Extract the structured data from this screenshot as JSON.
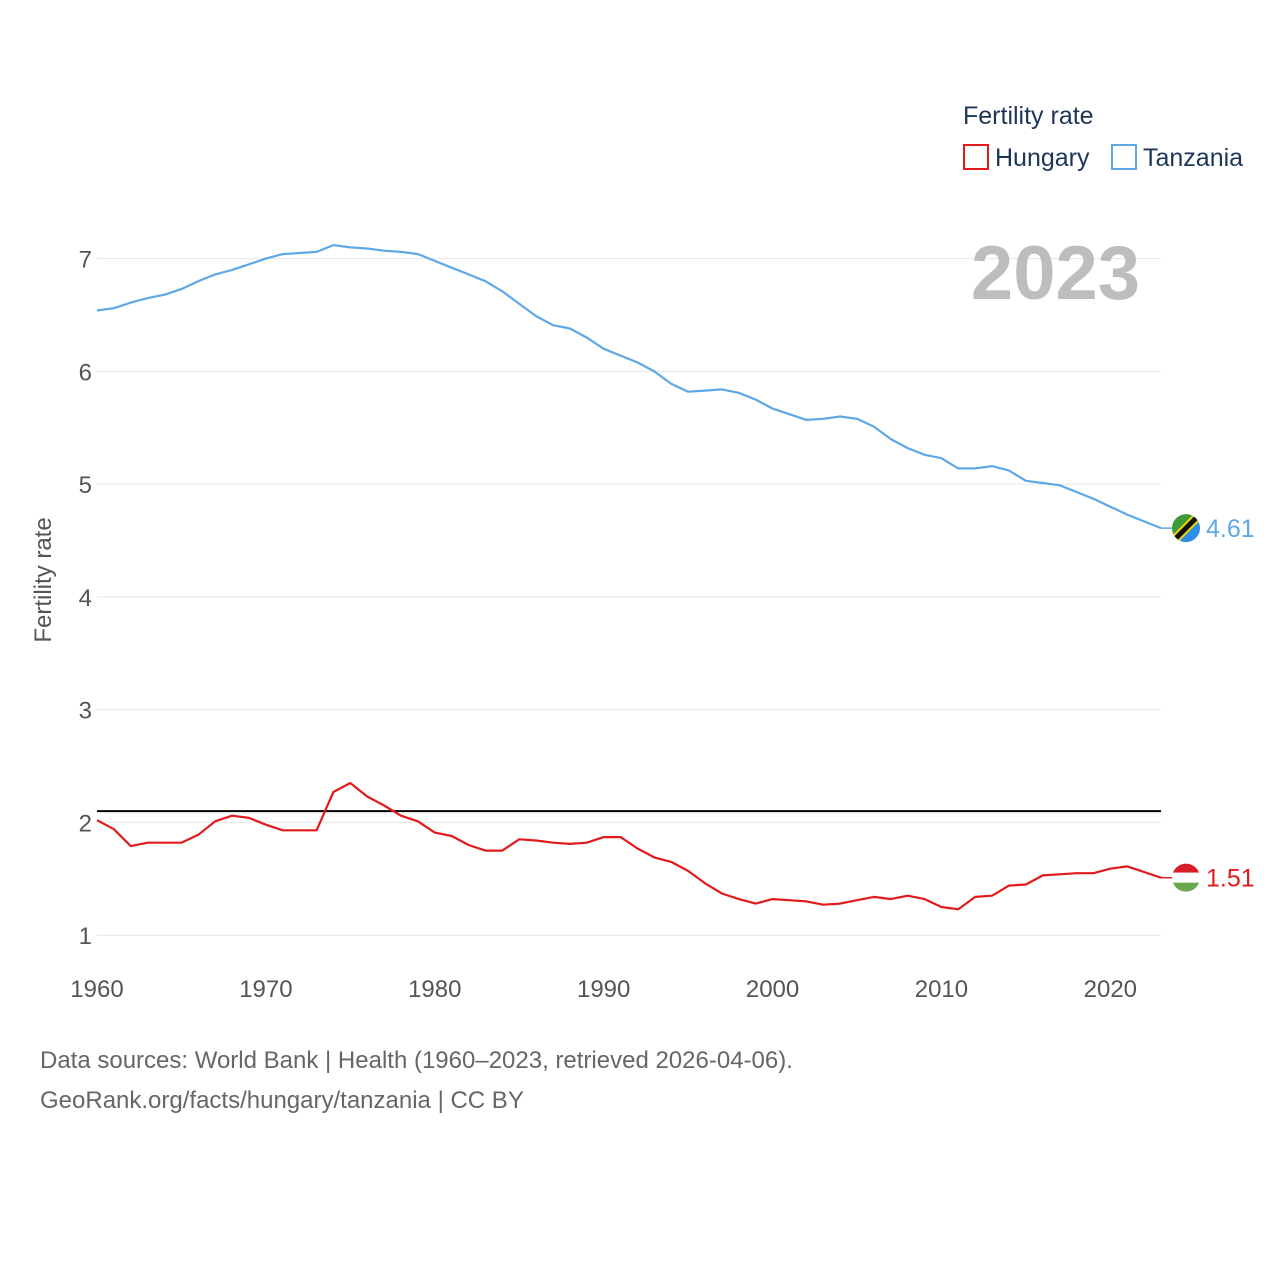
{
  "chart_data": {
    "type": "line",
    "legend_title": "Fertility rate",
    "ylabel": "Fertility rate",
    "xlabel": "",
    "year_label": "2023",
    "xlim": [
      1960,
      2023
    ],
    "ylim": [
      0.78,
      7.52
    ],
    "y_ticks": [
      1,
      2,
      3,
      4,
      5,
      6,
      7
    ],
    "x_ticks": [
      1960,
      1970,
      1980,
      1990,
      2000,
      2010,
      2020
    ],
    "reference_line": 2.1,
    "x": [
      1960,
      1961,
      1962,
      1963,
      1964,
      1965,
      1966,
      1967,
      1968,
      1969,
      1970,
      1971,
      1972,
      1973,
      1974,
      1975,
      1976,
      1977,
      1978,
      1979,
      1980,
      1981,
      1982,
      1983,
      1984,
      1985,
      1986,
      1987,
      1988,
      1989,
      1990,
      1991,
      1992,
      1993,
      1994,
      1995,
      1996,
      1997,
      1998,
      1999,
      2000,
      2001,
      2002,
      2003,
      2004,
      2005,
      2006,
      2007,
      2008,
      2009,
      2010,
      2011,
      2012,
      2013,
      2014,
      2015,
      2016,
      2017,
      2018,
      2019,
      2020,
      2021,
      2022,
      2023
    ],
    "series": [
      {
        "name": "Hungary",
        "color": "#e31a1c",
        "end_label": "1.51",
        "values": [
          2.02,
          1.94,
          1.79,
          1.82,
          1.82,
          1.82,
          1.89,
          2.01,
          2.06,
          2.04,
          1.98,
          1.93,
          1.93,
          1.93,
          2.27,
          2.35,
          2.23,
          2.15,
          2.06,
          2.01,
          1.91,
          1.88,
          1.8,
          1.75,
          1.75,
          1.85,
          1.84,
          1.82,
          1.81,
          1.82,
          1.87,
          1.87,
          1.77,
          1.69,
          1.65,
          1.57,
          1.46,
          1.37,
          1.32,
          1.28,
          1.32,
          1.31,
          1.3,
          1.27,
          1.28,
          1.31,
          1.34,
          1.32,
          1.35,
          1.32,
          1.25,
          1.23,
          1.34,
          1.35,
          1.44,
          1.45,
          1.53,
          1.54,
          1.55,
          1.55,
          1.59,
          1.61,
          1.56,
          1.51
        ]
      },
      {
        "name": "Tanzania",
        "color": "#5ea8e6",
        "end_label": "4.61",
        "values": [
          6.54,
          6.56,
          6.61,
          6.65,
          6.68,
          6.73,
          6.8,
          6.86,
          6.9,
          6.95,
          7.0,
          7.04,
          7.05,
          7.06,
          7.12,
          7.1,
          7.09,
          7.07,
          7.06,
          7.04,
          6.98,
          6.92,
          6.86,
          6.8,
          6.71,
          6.6,
          6.49,
          6.41,
          6.38,
          6.3,
          6.2,
          6.14,
          6.08,
          6.0,
          5.89,
          5.82,
          5.83,
          5.84,
          5.81,
          5.75,
          5.67,
          5.62,
          5.57,
          5.58,
          5.6,
          5.58,
          5.51,
          5.4,
          5.32,
          5.26,
          5.23,
          5.14,
          5.14,
          5.16,
          5.12,
          5.03,
          5.01,
          4.99,
          4.93,
          4.87,
          4.8,
          4.73,
          4.67,
          4.61
        ]
      }
    ]
  },
  "footer": {
    "source_line": "Data sources: World Bank | Health (1960–2023, retrieved 2026-04-06).",
    "credit_line": "GeoRank.org/facts/hungary/tanzania | CC BY"
  }
}
